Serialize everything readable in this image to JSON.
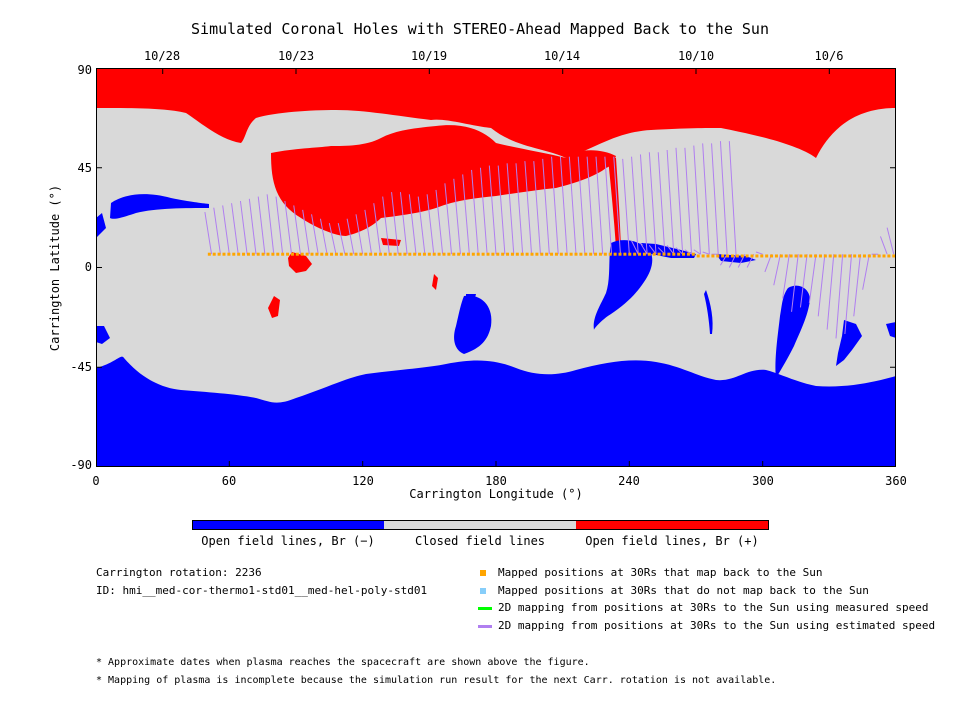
{
  "chart_data": {
    "type": "map",
    "title": "Simulated Coronal Holes with STEREO-Ahead Mapped Back to the Sun",
    "xlabel": "Carrington Longitude (°)",
    "ylabel": "Carrington Latitude (°)",
    "xlim": [
      0,
      360
    ],
    "ylim": [
      -90,
      90
    ],
    "x_ticks": [
      "0",
      "60",
      "120",
      "180",
      "240",
      "300",
      "360"
    ],
    "y_ticks": [
      "90",
      "45",
      "0",
      "-45",
      "-90"
    ],
    "top_dates": [
      {
        "label": "10/28",
        "lon": 30
      },
      {
        "label": "10/23",
        "lon": 90
      },
      {
        "label": "10/19",
        "lon": 150
      },
      {
        "label": "10/14",
        "lon": 210
      },
      {
        "label": "10/10",
        "lon": 270
      },
      {
        "label": "10/6",
        "lon": 330
      }
    ],
    "colorbar": [
      {
        "label": "Open field lines, Br (−)",
        "color": "#0000ff"
      },
      {
        "label": "Closed field lines",
        "color": "#d9d9d9"
      },
      {
        "label": "Open field lines, Br (+)",
        "color": "#ff0000"
      }
    ],
    "mapped_track_lat": 6,
    "mapped_track_lon_range": [
      51,
      360
    ],
    "mapping_lines": [
      [
        52,
        25
      ],
      [
        56,
        27
      ],
      [
        60,
        28
      ],
      [
        64,
        29
      ],
      [
        68,
        30
      ],
      [
        72,
        31
      ],
      [
        76,
        32
      ],
      [
        80,
        33
      ],
      [
        84,
        32
      ],
      [
        88,
        30
      ],
      [
        92,
        28
      ],
      [
        96,
        26
      ],
      [
        100,
        24
      ],
      [
        104,
        22
      ],
      [
        108,
        20
      ],
      [
        112,
        20
      ],
      [
        116,
        22
      ],
      [
        120,
        24
      ],
      [
        124,
        26
      ],
      [
        128,
        29
      ],
      [
        132,
        32
      ],
      [
        136,
        34
      ],
      [
        140,
        34
      ],
      [
        144,
        33
      ],
      [
        148,
        32
      ],
      [
        152,
        33
      ],
      [
        156,
        35
      ],
      [
        160,
        38
      ],
      [
        164,
        40
      ],
      [
        168,
        42
      ],
      [
        172,
        44
      ],
      [
        176,
        45
      ],
      [
        180,
        46
      ],
      [
        184,
        46
      ],
      [
        188,
        47
      ],
      [
        192,
        47
      ],
      [
        196,
        48
      ],
      [
        200,
        48
      ],
      [
        204,
        49
      ],
      [
        208,
        50
      ],
      [
        212,
        50
      ],
      [
        216,
        50
      ],
      [
        220,
        50
      ],
      [
        224,
        50
      ],
      [
        228,
        50
      ],
      [
        232,
        50
      ],
      [
        236,
        50
      ],
      [
        240,
        49
      ],
      [
        244,
        50
      ],
      [
        248,
        51
      ],
      [
        252,
        52
      ],
      [
        256,
        52
      ],
      [
        260,
        53
      ],
      [
        264,
        54
      ],
      [
        268,
        54
      ],
      [
        272,
        55
      ],
      [
        276,
        56
      ],
      [
        280,
        56
      ],
      [
        284,
        57
      ],
      [
        288,
        57
      ],
      [
        244,
        12
      ],
      [
        248,
        11
      ],
      [
        252,
        10
      ],
      [
        256,
        9
      ],
      [
        260,
        10
      ],
      [
        264,
        9
      ],
      [
        268,
        8
      ],
      [
        272,
        8
      ],
      [
        276,
        7
      ],
      [
        280,
        6
      ],
      [
        284,
        1
      ],
      [
        288,
        0
      ],
      [
        292,
        0
      ],
      [
        296,
        0
      ],
      [
        300,
        7
      ],
      [
        304,
        -2
      ],
      [
        308,
        -8
      ],
      [
        312,
        -14
      ],
      [
        316,
        -20
      ],
      [
        320,
        -18
      ],
      [
        324,
        -16
      ],
      [
        328,
        -22
      ],
      [
        332,
        -28
      ],
      [
        336,
        -32
      ],
      [
        340,
        -30
      ],
      [
        344,
        -22
      ],
      [
        348,
        -10
      ],
      [
        352,
        6
      ],
      [
        356,
        14
      ],
      [
        359,
        18
      ]
    ],
    "carrington_rotation": "2236",
    "legend": [
      {
        "label": "Mapped positions at 30Rs that map back to the Sun",
        "color": "#ffa500",
        "kind": "square"
      },
      {
        "label": "Mapped positions at 30Rs that do not map back to the Sun",
        "color": "#87cefa",
        "kind": "square"
      },
      {
        "label": "2D mapping from positions at 30Rs to the Sun using measured speed",
        "color": "#00ff00",
        "kind": "line"
      },
      {
        "label": "2D mapping from positions at 30Rs to the Sun using estimated speed",
        "color": "#b07ff0",
        "kind": "line"
      }
    ]
  },
  "info": {
    "rotation_text": "Carrington rotation: 2236",
    "id_text": "ID: hmi__med-cor-thermo1-std01__med-hel-poly-std01"
  },
  "notes": [
    "* Approximate dates when plasma reaches the spacecraft are shown above the figure.",
    "* Mapping of plasma is incomplete because the simulation run result for the next Carr. rotation is not available."
  ],
  "colors": {
    "positive": "#ff0000",
    "negative": "#0000ff",
    "closed": "#d9d9d9",
    "track": "#ffa500",
    "mapping": "#b07ff0"
  }
}
